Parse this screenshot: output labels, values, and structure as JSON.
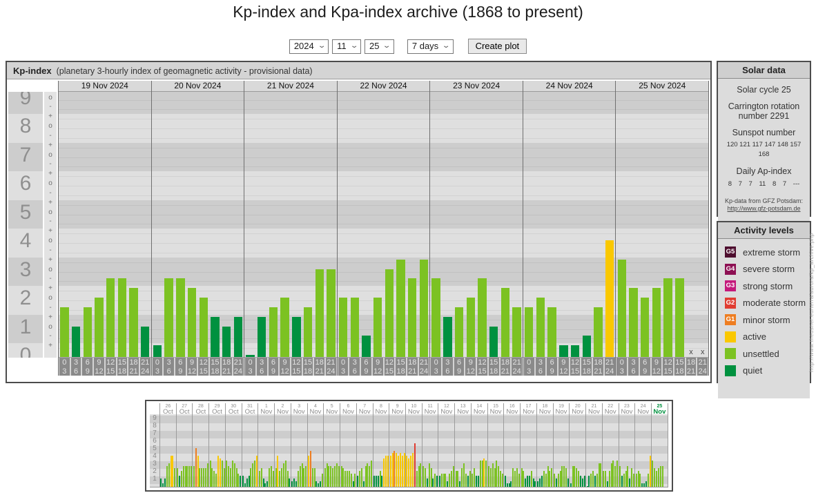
{
  "page": {
    "title": "Kp-index and Kpa-index archive (1868 to present)"
  },
  "controls": {
    "year": "2024",
    "month": "11",
    "day": "25",
    "range": "7 days",
    "create_button": "Create plot"
  },
  "colors": {
    "quiet": "#00913f",
    "unsettled": "#7cc222",
    "active": "#fac800",
    "g1": "#ee7d20",
    "g2": "#e03c31",
    "g3": "#c4197b",
    "g4": "#8d1053",
    "g5": "#4d0d2e",
    "band_dark": "#cdcdcd",
    "band_light": "#dfdfdf"
  },
  "chart_data": [
    {
      "type": "bar",
      "name": "kp-index-7day",
      "title": "Kp-index",
      "subtitle": "(planetary 3-hourly index of geomagnetic activity - provisional data)",
      "ylabel": "Kp",
      "ylim": [
        0,
        9
      ],
      "y_ticks": [
        9,
        8,
        7,
        6,
        5,
        4,
        3,
        2,
        1,
        0
      ],
      "sub_ticks": [
        "+",
        "o",
        "-"
      ],
      "grid": true,
      "missing_marker": "x",
      "hour_slots": [
        [
          "0",
          "3"
        ],
        [
          "3",
          "6"
        ],
        [
          "6",
          "9"
        ],
        [
          "9",
          "12"
        ],
        [
          "12",
          "15"
        ],
        [
          "15",
          "18"
        ],
        [
          "18",
          "21"
        ],
        [
          "21",
          "24"
        ]
      ],
      "level_thresholds": {
        "unsettled": 1.67,
        "active": 3.67,
        "g1": 4.67,
        "g2": 5.67,
        "g3": 6.67,
        "g4": 7.67,
        "g5": 8.67
      },
      "days": [
        {
          "date": "19 Nov 2024",
          "values": [
            1.67,
            1.0,
            1.67,
            2.0,
            2.67,
            2.67,
            2.33,
            1.0
          ]
        },
        {
          "date": "20 Nov 2024",
          "values": [
            0.33,
            2.67,
            2.67,
            2.33,
            2.0,
            1.33,
            1.0,
            1.33
          ]
        },
        {
          "date": "21 Nov 2024",
          "values": [
            0.0,
            1.33,
            1.67,
            2.0,
            1.33,
            1.67,
            3.0,
            3.0
          ]
        },
        {
          "date": "22 Nov 2024",
          "values": [
            2.0,
            2.0,
            0.67,
            2.0,
            3.0,
            3.33,
            2.67,
            3.33
          ]
        },
        {
          "date": "23 Nov 2024",
          "values": [
            2.67,
            1.33,
            1.67,
            2.0,
            2.67,
            1.0,
            2.33,
            1.67
          ]
        },
        {
          "date": "24 Nov 2024",
          "values": [
            1.67,
            2.0,
            1.67,
            0.33,
            0.33,
            0.67,
            1.67,
            4.0
          ]
        },
        {
          "date": "25 Nov 2024",
          "values": [
            3.33,
            2.33,
            2.0,
            2.33,
            2.67,
            2.67,
            null,
            null
          ]
        }
      ]
    },
    {
      "type": "bar",
      "name": "kp-index-31day-overview",
      "ylim": [
        0,
        9
      ],
      "y_ticks": [
        9,
        8,
        7,
        6,
        5,
        4,
        3,
        2,
        1
      ],
      "highlight_date": "25 Nov",
      "days": [
        {
          "date": "26 Oct",
          "values": [
            1.0,
            0.33,
            1.0,
            2.67,
            3.0,
            4.0,
            4.0,
            2.33
          ]
        },
        {
          "date": "27 Oct",
          "values": [
            2.33,
            1.33,
            2.0,
            2.67,
            2.67,
            2.67,
            2.67,
            2.67
          ]
        },
        {
          "date": "28 Oct",
          "values": [
            2.67,
            5.0,
            4.0,
            2.33,
            2.33,
            2.33,
            2.33,
            3.0
          ]
        },
        {
          "date": "29 Oct",
          "values": [
            3.33,
            2.33,
            2.0,
            1.67,
            4.0,
            3.67,
            3.33,
            2.33
          ]
        },
        {
          "date": "30 Oct",
          "values": [
            3.33,
            2.67,
            2.33,
            3.33,
            3.0,
            2.33,
            1.67,
            1.33
          ]
        },
        {
          "date": "31 Oct",
          "values": [
            1.33,
            0.33,
            1.0,
            1.33,
            2.33,
            3.0,
            3.33,
            4.0
          ]
        },
        {
          "date": "1 Nov",
          "values": [
            2.0,
            2.33,
            1.0,
            0.33,
            0.67,
            2.33,
            2.67,
            2.0
          ]
        },
        {
          "date": "2 Nov",
          "values": [
            2.33,
            4.0,
            2.0,
            2.33,
            3.0,
            3.33,
            2.0,
            1.0
          ]
        },
        {
          "date": "3 Nov",
          "values": [
            0.67,
            1.0,
            0.67,
            2.0,
            2.67,
            3.0,
            2.33,
            2.67
          ]
        },
        {
          "date": "4 Nov",
          "values": [
            4.0,
            4.67,
            2.33,
            2.33,
            0.67,
            0.33,
            0.67,
            1.67
          ]
        },
        {
          "date": "5 Nov",
          "values": [
            2.33,
            3.0,
            2.67,
            2.67,
            2.33,
            2.67,
            3.0,
            2.67
          ]
        },
        {
          "date": "6 Nov",
          "values": [
            2.67,
            2.33,
            2.0,
            2.0,
            2.0,
            1.67,
            0.67,
            1.67
          ]
        },
        {
          "date": "7 Nov",
          "values": [
            1.33,
            2.0,
            2.33,
            0.67,
            2.67,
            3.0,
            2.67,
            3.33
          ]
        },
        {
          "date": "8 Nov",
          "values": [
            1.33,
            1.33,
            1.33,
            2.0,
            1.33,
            3.67,
            4.0,
            4.0
          ]
        },
        {
          "date": "9 Nov",
          "values": [
            4.0,
            4.33,
            4.67,
            4.33,
            4.0,
            4.33,
            4.0,
            4.33
          ]
        },
        {
          "date": "10 Nov",
          "values": [
            4.0,
            3.67,
            4.0,
            4.33,
            5.67,
            2.0,
            2.67,
            3.0
          ]
        },
        {
          "date": "11 Nov",
          "values": [
            2.67,
            2.33,
            1.0,
            3.0,
            2.33,
            1.0,
            1.67,
            1.33
          ]
        },
        {
          "date": "12 Nov",
          "values": [
            1.33,
            1.67,
            1.67,
            1.67,
            0.67,
            1.67,
            2.0,
            2.67
          ]
        },
        {
          "date": "13 Nov",
          "values": [
            2.0,
            2.0,
            0.67,
            2.33,
            3.0,
            1.67,
            1.33,
            2.0
          ]
        },
        {
          "date": "14 Nov",
          "values": [
            1.67,
            2.33,
            1.33,
            1.33,
            3.33,
            3.33,
            3.67,
            3.33
          ]
        },
        {
          "date": "15 Nov",
          "values": [
            2.67,
            2.33,
            3.0,
            2.33,
            3.33,
            2.67,
            2.0,
            1.67
          ]
        },
        {
          "date": "16 Nov",
          "values": [
            1.33,
            0.33,
            0.33,
            0.67,
            2.33,
            2.0,
            2.33,
            1.67
          ]
        },
        {
          "date": "17 Nov",
          "values": [
            2.33,
            2.0,
            1.0,
            1.33,
            1.33,
            2.0,
            1.0,
            0.67
          ]
        },
        {
          "date": "18 Nov",
          "values": [
            0.67,
            1.0,
            1.33,
            2.0,
            1.67,
            2.67,
            2.0,
            2.33
          ]
        },
        {
          "date": "19 Nov",
          "values": [
            1.67,
            1.0,
            1.67,
            2.0,
            2.67,
            2.67,
            2.33,
            1.0
          ]
        },
        {
          "date": "20 Nov",
          "values": [
            0.33,
            2.67,
            2.67,
            2.33,
            2.0,
            1.33,
            1.0,
            1.33
          ]
        },
        {
          "date": "21 Nov",
          "values": [
            0.0,
            1.33,
            1.67,
            2.0,
            1.33,
            1.67,
            3.0,
            3.0
          ]
        },
        {
          "date": "22 Nov",
          "values": [
            2.0,
            2.0,
            0.67,
            2.0,
            3.0,
            3.33,
            2.67,
            3.33
          ]
        },
        {
          "date": "23 Nov",
          "values": [
            2.67,
            1.33,
            1.67,
            2.0,
            2.67,
            1.0,
            2.33,
            1.67
          ]
        },
        {
          "date": "24 Nov",
          "values": [
            1.67,
            2.0,
            1.67,
            0.33,
            0.33,
            0.67,
            1.67,
            4.0
          ]
        },
        {
          "date": "25 Nov",
          "values": [
            3.33,
            2.33,
            2.0,
            2.33,
            2.67,
            2.67,
            null,
            null
          ]
        }
      ]
    }
  ],
  "solar_panel": {
    "title": "Solar data",
    "cycle": "Solar cycle 25",
    "carrington": "Carrington rotation number 2291",
    "sunspot_title": "Sunspot number",
    "sunspot_values": [
      120,
      121,
      117,
      147,
      148,
      157,
      168
    ],
    "ap_title": "Daily Ap-index",
    "ap_values": [
      "8",
      "7",
      "7",
      "11",
      "8",
      "7",
      "---"
    ],
    "source_line1": "Kp-data from GFZ Potsdam:",
    "source_line2": "http://www.gfz-potsdam.de"
  },
  "activity_panel": {
    "title": "Activity levels",
    "items": [
      {
        "badge": "G5",
        "label": "extreme storm",
        "color_key": "g5"
      },
      {
        "badge": "G4",
        "label": "severe storm",
        "color_key": "g4"
      },
      {
        "badge": "G3",
        "label": "strong storm",
        "color_key": "g3"
      },
      {
        "badge": "G2",
        "label": "moderate storm",
        "color_key": "g2"
      },
      {
        "badge": "G1",
        "label": "minor storm",
        "color_key": "g1"
      },
      {
        "badge": "",
        "label": "active",
        "color_key": "active"
      },
      {
        "badge": "",
        "label": "unsettled",
        "color_key": "unsettled"
      },
      {
        "badge": "",
        "label": "quiet",
        "color_key": "quiet"
      }
    ]
  },
  "watermark": "http://www.theusner.eu/terra/aurora/kp_archive.php"
}
